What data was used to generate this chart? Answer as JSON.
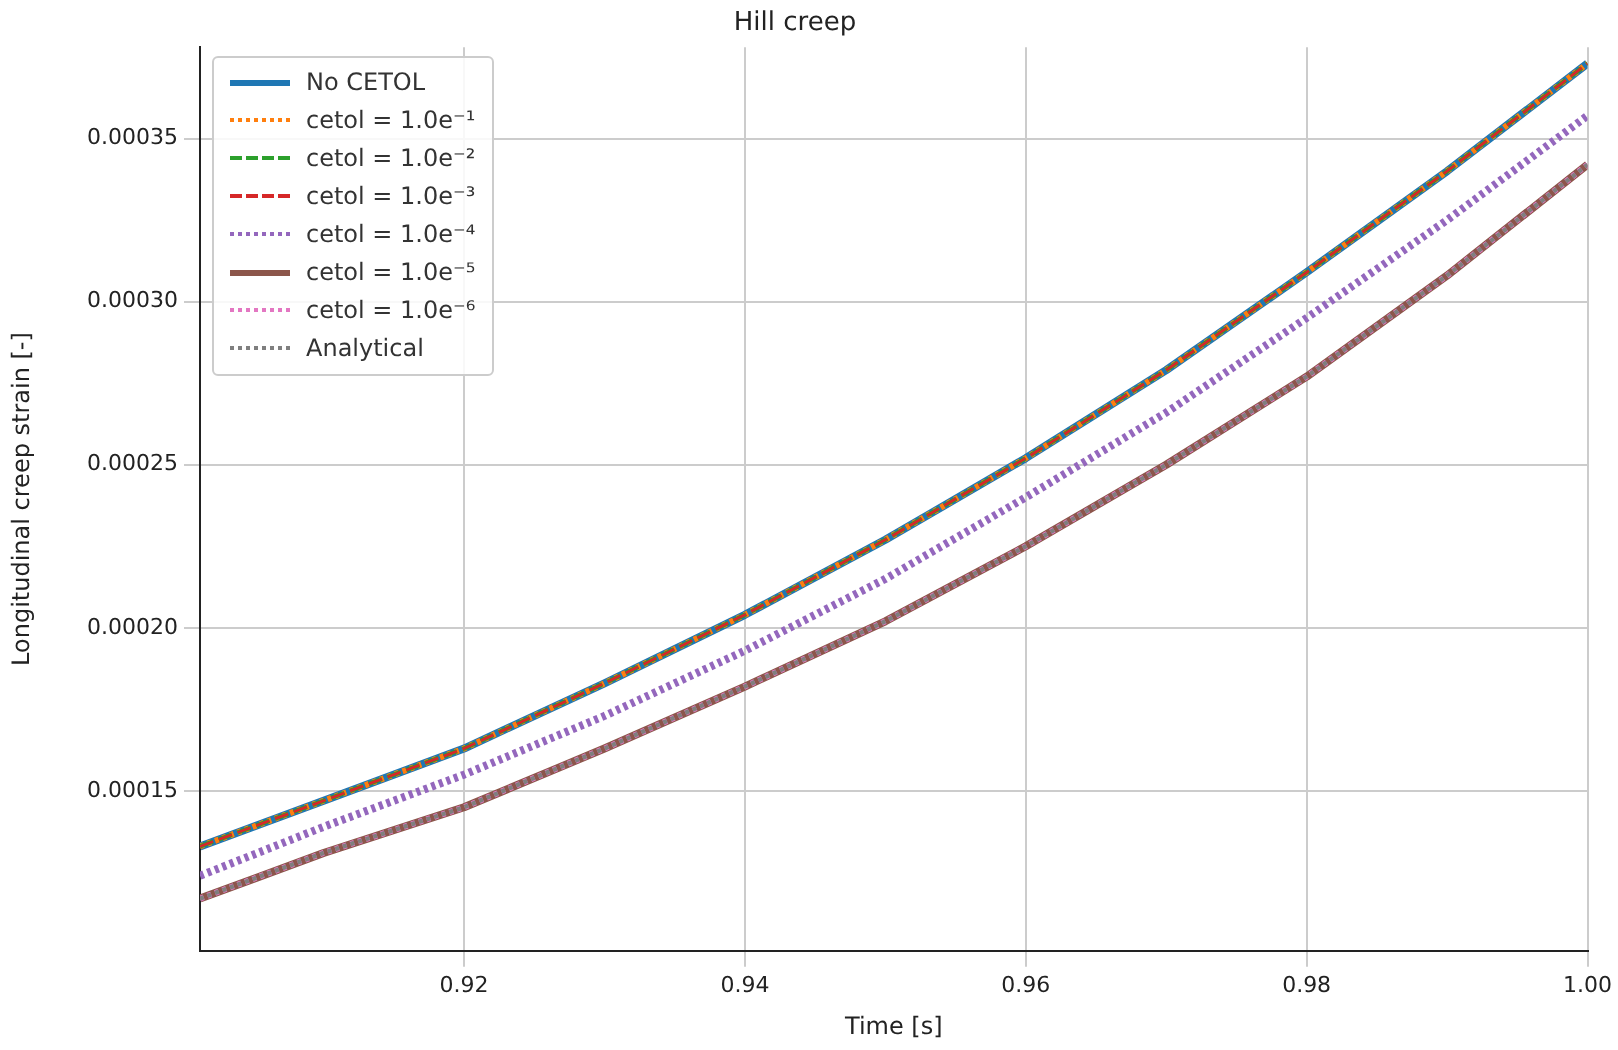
{
  "chart_data": {
    "type": "line",
    "title": "Hill creep",
    "xlabel": "Time [s]",
    "ylabel": "Longitudinal creep strain [-]",
    "x": [
      0.9012,
      0.91,
      0.92,
      0.93,
      0.94,
      0.95,
      0.96,
      0.97,
      0.98,
      0.99,
      1.0
    ],
    "series": [
      {
        "name": "No CETOL",
        "color": "#1f77b4",
        "line_style": "solid",
        "values": [
          0.000133,
          0.000147,
          0.000163,
          0.000183,
          0.000204,
          0.000227,
          0.000252,
          0.000279,
          0.000309,
          0.00034,
          0.000373
        ]
      },
      {
        "name": "cetol = 1.0e⁻¹",
        "color": "#ff7f0e",
        "line_style": "dotted",
        "values": [
          0.000133,
          0.000147,
          0.000163,
          0.000183,
          0.000204,
          0.000227,
          0.000252,
          0.000279,
          0.000309,
          0.00034,
          0.000373
        ]
      },
      {
        "name": "cetol = 1.0e⁻²",
        "color": "#2ca02c",
        "line_style": "dashed",
        "values": [
          0.000133,
          0.000147,
          0.000163,
          0.000183,
          0.000204,
          0.000227,
          0.000252,
          0.000279,
          0.000309,
          0.00034,
          0.000373
        ]
      },
      {
        "name": "cetol = 1.0e⁻³",
        "color": "#d62728",
        "line_style": "dashed",
        "values": [
          0.000133,
          0.000147,
          0.000163,
          0.000183,
          0.000204,
          0.000227,
          0.000252,
          0.000279,
          0.000309,
          0.00034,
          0.000373
        ]
      },
      {
        "name": "cetol = 1.0e⁻⁴",
        "color": "#9467bd",
        "line_style": "dotted",
        "values": [
          0.000124,
          0.000139,
          0.000155,
          0.000173,
          0.000193,
          0.000215,
          0.00024,
          0.000266,
          0.000295,
          0.000325,
          0.000357
        ]
      },
      {
        "name": "cetol = 1.0e⁻⁵",
        "color": "#8c564b",
        "line_style": "solid",
        "values": [
          0.000117,
          0.000131,
          0.000145,
          0.000163,
          0.000182,
          0.000202,
          0.000225,
          0.00025,
          0.000277,
          0.000308,
          0.000342
        ]
      },
      {
        "name": "cetol = 1.0e⁻⁶",
        "color": "#e377c2",
        "line_style": "dotted",
        "values": [
          0.000117,
          0.000131,
          0.000145,
          0.000163,
          0.000182,
          0.000202,
          0.000225,
          0.00025,
          0.000277,
          0.000308,
          0.000342
        ]
      },
      {
        "name": "Analytical",
        "color": "#7f7f7f",
        "line_style": "dotted",
        "values": [
          0.000117,
          0.000131,
          0.000145,
          0.000163,
          0.000182,
          0.000202,
          0.000225,
          0.00025,
          0.000277,
          0.000308,
          0.000342
        ]
      }
    ],
    "xlim": [
      0.9012,
      1.0
    ],
    "xticks": [
      0.92,
      0.94,
      0.96,
      0.98,
      {
        "value": 1.0,
        "label": "1.00"
      }
    ],
    "ylim": [
      0.000101,
      0.000378
    ],
    "yticks": [
      {
        "value": 0.00015,
        "label": "0.00015"
      },
      {
        "value": 0.0002,
        "label": "0.00020"
      },
      {
        "value": 0.00025,
        "label": "0.00025"
      },
      {
        "value": 0.0003,
        "label": "0.00030"
      },
      {
        "value": 0.00035,
        "label": "0.00035"
      }
    ],
    "grid": true,
    "legend": "top left",
    "marker": "none"
  }
}
